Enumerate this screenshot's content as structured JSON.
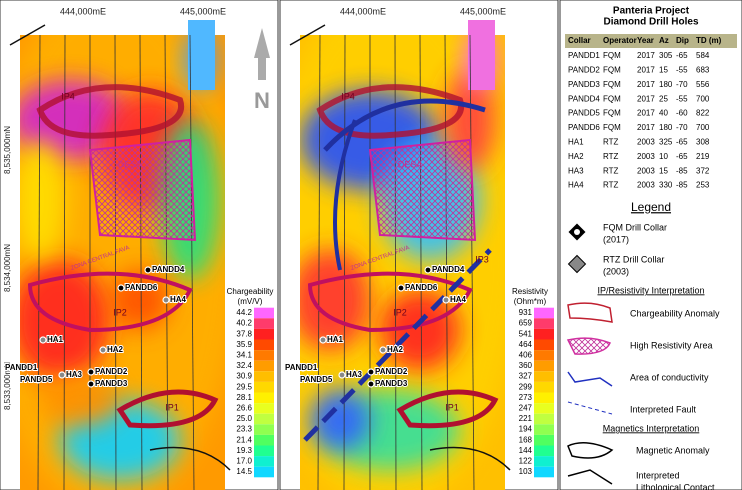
{
  "maps": [
    {
      "eastings": [
        "444,000mE",
        "445,000mE"
      ],
      "northings": [
        "8,535,000mN",
        "8,534,000mN",
        "8,533,000mN"
      ],
      "north": "N",
      "scale": {
        "title": "Chargeability",
        "unit": "(mV/V)",
        "labels": [
          "44.2",
          "40.2",
          "37.8",
          "35.9",
          "34.1",
          "32.4",
          "30.9",
          "29.5",
          "28.1",
          "26.6",
          "25.0",
          "23.3",
          "21.4",
          "19.3",
          "17.0",
          "14.5"
        ]
      },
      "areas": [
        "IP4",
        "IP2",
        "IP1",
        "DESA",
        "ZONA CENTRAL FAVA"
      ],
      "collars": [
        "PANDD4",
        "PANDD6",
        "HA4",
        "HA1",
        "HA2",
        "PANDD1",
        "PANDD5",
        "HA3",
        "PANDD2",
        "PANDD3"
      ]
    },
    {
      "eastings": [
        "444,000mE",
        "445,000mE"
      ],
      "northings": [],
      "scale": {
        "title": "Resistivity",
        "unit": "(Ohm*m)",
        "labels": [
          "931",
          "659",
          "541",
          "464",
          "406",
          "360",
          "327",
          "299",
          "273",
          "247",
          "221",
          "194",
          "168",
          "144",
          "122",
          "103"
        ]
      },
      "areas": [
        "IP4",
        "IP2",
        "IP1",
        "DESA",
        "ZONA CENTRAL FAVA",
        "IP3"
      ],
      "collars": [
        "PANDD4",
        "PANDD6",
        "HA4",
        "HA1",
        "HA2",
        "PANDD1",
        "PANDD5",
        "HA3",
        "PANDD2",
        "PANDD3"
      ]
    }
  ],
  "table": {
    "title": "Panteria Project",
    "subtitle": "Diamond Drill Holes",
    "header": [
      "Collar",
      "Operator",
      "Year",
      "Az",
      "Dip",
      "TD (m)"
    ],
    "rows": [
      [
        "PANDD1",
        "FQM",
        "2017",
        "305",
        "-65",
        "584"
      ],
      [
        "PANDD2",
        "FQM",
        "2017",
        "15",
        "-55",
        "683"
      ],
      [
        "PANDD3",
        "FQM",
        "2017",
        "180",
        "-70",
        "556"
      ],
      [
        "PANDD4",
        "FQM",
        "2017",
        "25",
        "-55",
        "700"
      ],
      [
        "PANDD5",
        "FQM",
        "2017",
        "40",
        "-60",
        "822"
      ],
      [
        "PANDD6",
        "FQM",
        "2017",
        "180",
        "-70",
        "700"
      ],
      [
        "HA1",
        "RTZ",
        "2003",
        "325",
        "-65",
        "308"
      ],
      [
        "HA2",
        "RTZ",
        "2003",
        "10",
        "-65",
        "219"
      ],
      [
        "HA3",
        "RTZ",
        "2003",
        "15",
        "-85",
        "372"
      ],
      [
        "HA4",
        "RTZ",
        "2003",
        "330",
        "-85",
        "253"
      ]
    ]
  },
  "legend": {
    "title": "Legend",
    "fqm": [
      "FQM Drill Collar",
      "(2017)"
    ],
    "rtz": [
      "RTZ Drill Collar",
      "(2003)"
    ],
    "ip_heading": "IP/Resistivity Interpretation",
    "ip_items": [
      "Chargeability Anomaly",
      "High Resistivity Area",
      "Area of conductivity",
      "Interpreted Fault"
    ],
    "mag_heading": "Magnetics Interpretation",
    "mag_items": [
      "Magnetic Anomaly"
    ],
    "contact": [
      "Interpreted",
      "Lithological Contact"
    ]
  }
}
